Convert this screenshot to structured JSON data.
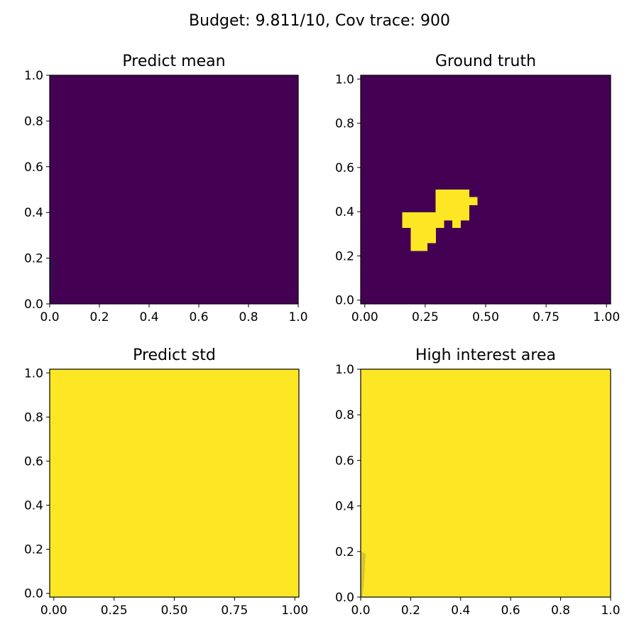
{
  "figure": {
    "suptitle": "Budget: 9.811/10,  Cov trace: 900"
  },
  "colors": {
    "low": "#440154",
    "high": "#fde725",
    "low_overlay": "#26174a",
    "high_overlay": "#b8a83a"
  },
  "chart_data": [
    {
      "type": "heatmap",
      "title": "Predict mean",
      "xlim": [
        0,
        1
      ],
      "ylim": [
        0,
        1
      ],
      "xticks": [
        "0.0",
        "0.2",
        "0.4",
        "0.6",
        "0.8",
        "1.0"
      ],
      "yticks": [
        "0.0",
        "0.2",
        "0.4",
        "0.6",
        "0.8",
        "1.0"
      ],
      "fill": "low",
      "note": "uniform low value; faint darker sliver at x≈0, y 0–0.2"
    },
    {
      "type": "heatmap",
      "title": "Ground truth",
      "xlim": [
        -0.017,
        1.017
      ],
      "ylim": [
        -0.017,
        1.017
      ],
      "xticks": [
        "0.00",
        "0.25",
        "0.50",
        "0.75",
        "1.00"
      ],
      "yticks": [
        "0.0",
        "0.2",
        "0.4",
        "0.6",
        "0.8",
        "1.0"
      ],
      "fill": "low",
      "grid_size": 30,
      "high_cells": [
        [
          9,
          14
        ],
        [
          10,
          14
        ],
        [
          11,
          14
        ],
        [
          12,
          14
        ],
        [
          9,
          13
        ],
        [
          10,
          13
        ],
        [
          11,
          13
        ],
        [
          12,
          13
        ],
        [
          13,
          13
        ],
        [
          9,
          12
        ],
        [
          10,
          12
        ],
        [
          11,
          12
        ],
        [
          12,
          12
        ],
        [
          5,
          11
        ],
        [
          6,
          11
        ],
        [
          7,
          11
        ],
        [
          8,
          11
        ],
        [
          9,
          11
        ],
        [
          10,
          11
        ],
        [
          11,
          11
        ],
        [
          12,
          11
        ],
        [
          5,
          10
        ],
        [
          6,
          10
        ],
        [
          7,
          10
        ],
        [
          8,
          10
        ],
        [
          9,
          10
        ],
        [
          11,
          10
        ],
        [
          6,
          9
        ],
        [
          7,
          9
        ],
        [
          8,
          9
        ],
        [
          6,
          8
        ],
        [
          7,
          8
        ],
        [
          8,
          8
        ],
        [
          6,
          7
        ],
        [
          7,
          7
        ]
      ]
    },
    {
      "type": "heatmap",
      "title": "Predict std",
      "xlim": [
        -0.017,
        1.017
      ],
      "ylim": [
        -0.017,
        1.017
      ],
      "xticks": [
        "0.00",
        "0.25",
        "0.50",
        "0.75",
        "1.00"
      ],
      "yticks": [
        "0.0",
        "0.2",
        "0.4",
        "0.6",
        "0.8",
        "1.0"
      ],
      "fill": "high"
    },
    {
      "type": "heatmap",
      "title": "High interest area",
      "xlim": [
        0,
        1
      ],
      "ylim": [
        0,
        1
      ],
      "xticks": [
        "0.0",
        "0.2",
        "0.4",
        "0.6",
        "0.8",
        "1.0"
      ],
      "yticks": [
        "0.0",
        "0.2",
        "0.4",
        "0.6",
        "0.8",
        "1.0"
      ],
      "fill": "high",
      "note": "uniform high value; faint darker sliver at x≈0, y 0–0.2"
    }
  ]
}
